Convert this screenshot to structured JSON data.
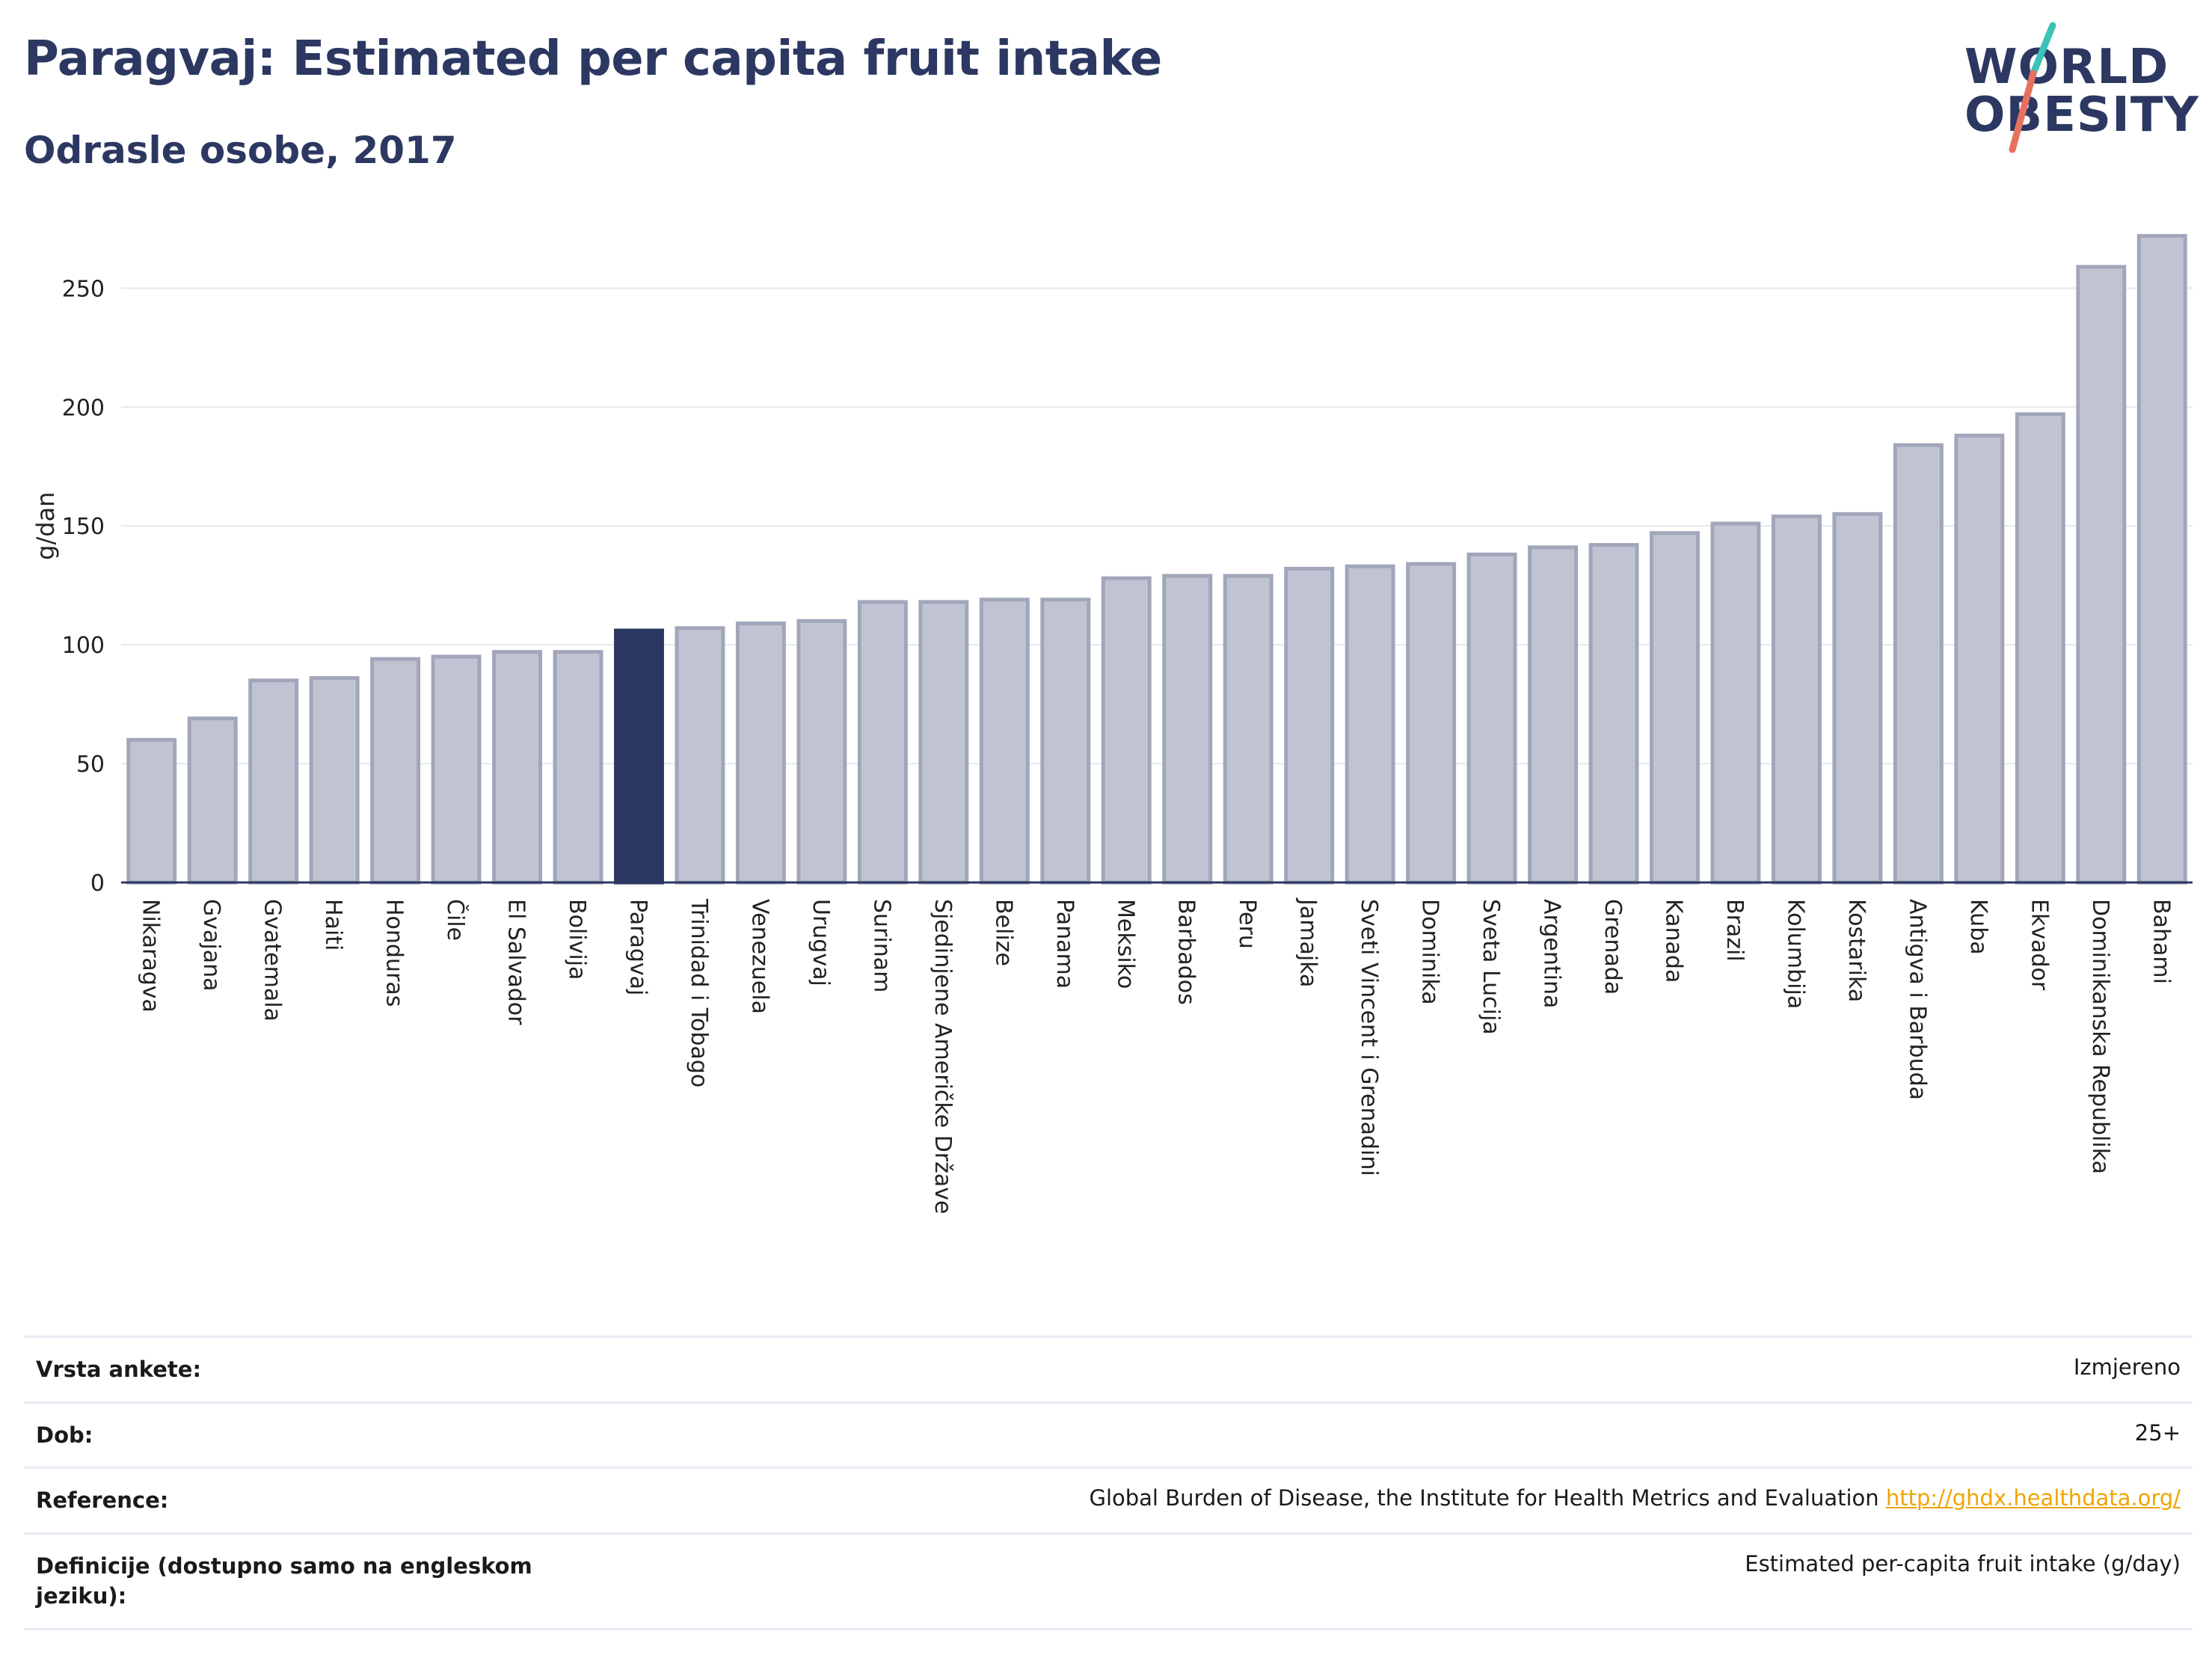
{
  "header": {
    "title": "Paragvaj: Estimated per capita fruit intake",
    "subtitle": "Odrasle osobe, 2017"
  },
  "logo": {
    "line1": "WORLD",
    "line2": "OBESITY",
    "colors": {
      "text": "#2c3862",
      "slash_top": "#3cc2b6",
      "slash_bottom": "#e8705f"
    }
  },
  "colors": {
    "bar_default": "#c0c4d2",
    "bar_default_stroke": "#a1a6ba",
    "bar_highlight": "#2c3862",
    "axis": "#2c3862",
    "grid": "#e6e8ee"
  },
  "chart_data": {
    "type": "bar",
    "title": "Paragvaj: Estimated per capita fruit intake",
    "subtitle": "Odrasle osobe, 2017",
    "xlabel": "",
    "ylabel": "g/dan",
    "ylim": [
      0,
      280
    ],
    "yticks": [
      0,
      50,
      100,
      150,
      200,
      250
    ],
    "grid": true,
    "highlight": "Paragvaj",
    "categories": [
      "Nikaragva",
      "Gvajana",
      "Gvatemala",
      "Haiti",
      "Honduras",
      "Čile",
      "El Salvador",
      "Bolivija",
      "Paragvaj",
      "Trinidad i Tobago",
      "Venezuela",
      "Urugvaj",
      "Surinam",
      "Sjedinjene Američke Države",
      "Belize",
      "Panama",
      "Meksiko",
      "Barbados",
      "Peru",
      "Jamajka",
      "Sveti Vincent i Grenadini",
      "Dominika",
      "Sveta Lucija",
      "Argentina",
      "Grenada",
      "Kanada",
      "Brazil",
      "Kolumbija",
      "Kostarika",
      "Antigva i Barbuda",
      "Kuba",
      "Ekvador",
      "Dominikanska Republika",
      "Bahami"
    ],
    "values": [
      60,
      69,
      85,
      86,
      94,
      95,
      97,
      97,
      106,
      107,
      109,
      110,
      118,
      118,
      119,
      119,
      128,
      129,
      129,
      132,
      133,
      134,
      138,
      141,
      142,
      147,
      151,
      154,
      155,
      184,
      188,
      197,
      259,
      272
    ]
  },
  "info": {
    "rows": [
      {
        "label": "Vrsta ankete:",
        "value": "Izmjereno"
      },
      {
        "label": "Dob:",
        "value": "25+"
      },
      {
        "label": "Reference:",
        "value": "Global Burden of Disease, the Institute for Health Metrics and Evaluation",
        "link": "http://ghdx.healthdata.org/"
      },
      {
        "label": "Definicije (dostupno samo na engleskom jeziku):",
        "value": "Estimated per-capita fruit intake (g/day)"
      }
    ]
  }
}
